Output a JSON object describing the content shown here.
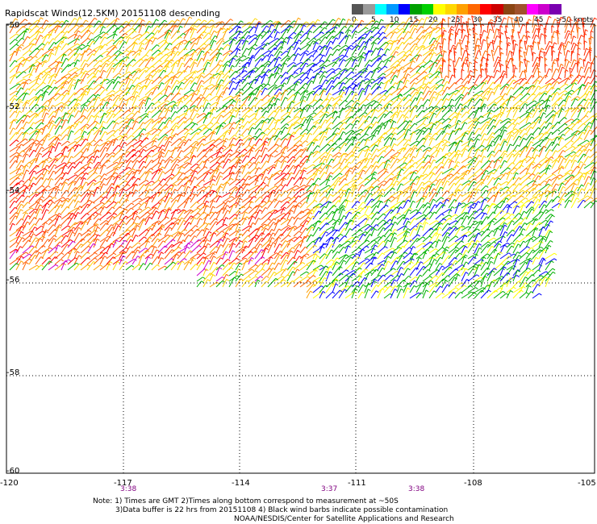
{
  "header": {
    "title": "Rapidscat Winds(12.5KM) 20151108 descending"
  },
  "legend": {
    "colors": [
      "#555555",
      "#9a9a9a",
      "#00ffff",
      "#0099ff",
      "#0000ff",
      "#00a000",
      "#00d000",
      "#ffff00",
      "#ffd700",
      "#ffa000",
      "#ff6600",
      "#ff0000",
      "#cc0000",
      "#8b4513",
      "#a0522d",
      "#ff00ff",
      "#cc00cc",
      "#7a00b0"
    ],
    "ticks": [
      "0",
      "5",
      "10",
      "15",
      "20",
      "25",
      "30",
      "35",
      "40",
      "45",
      ">50 knots"
    ]
  },
  "map": {
    "lat_labels": [
      "-50",
      "-52",
      "-54",
      "-56",
      "-58",
      "-60"
    ],
    "lon_labels": [
      "-120",
      "-117",
      "-114",
      "-111",
      "-108",
      "-105"
    ],
    "time_labels": [
      "3:38",
      "3:37",
      "3:38"
    ]
  },
  "notes": {
    "line1": "Note: 1) Times are GMT 2)Times along bottom correspond to measurement at ~50S",
    "line2": "3)Data buffer is 22 hrs from 20151108 4) Black wind barbs indicate possible contamination",
    "line3": "NOAA/NESDIS/Center for Satellite Applications and Research"
  }
}
